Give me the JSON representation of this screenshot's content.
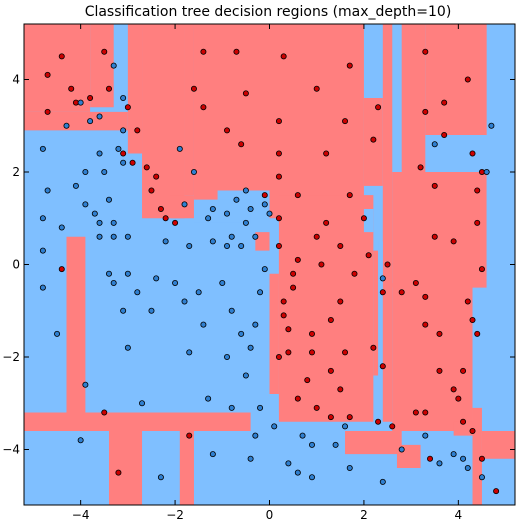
{
  "chart_data": {
    "type": "scatter",
    "title": "Classification tree decision regions (max_depth=10)",
    "xlabel": "",
    "ylabel": "",
    "xlim": [
      -5.2,
      5.2
    ],
    "ylim": [
      -5.2,
      5.2
    ],
    "x_ticks": [
      -4,
      -2,
      0,
      2,
      4
    ],
    "y_ticks": [
      -4,
      -2,
      0,
      2,
      4
    ],
    "grid": false,
    "colors": {
      "class0_region": "#ff7f7f",
      "class1_region": "#7fbfff",
      "class0_point": "#cc0000",
      "class1_point": "#2f7fd0",
      "marker_edge": "#000000"
    },
    "regions_note": "decision regions rendered as axis-aligned rectangles over a blue background",
    "series": [
      {
        "class": 0,
        "color": "#cc0000",
        "points": [
          [
            -4.7,
            4.1
          ],
          [
            -4.4,
            4.5
          ],
          [
            -4.7,
            3.3
          ],
          [
            -4.2,
            3.8
          ],
          [
            -3.5,
            4.6
          ],
          [
            -3.8,
            3.6
          ],
          [
            -3.4,
            3.8
          ],
          [
            -3.0,
            3.4
          ],
          [
            -2.8,
            2.9
          ],
          [
            -3.1,
            2.4
          ],
          [
            -2.6,
            2.1
          ],
          [
            -2.4,
            1.9
          ],
          [
            -2.5,
            1.6
          ],
          [
            -2.3,
            1.2
          ],
          [
            -2.2,
            1.0
          ],
          [
            -2.0,
            0.9
          ],
          [
            -1.6,
            3.8
          ],
          [
            -1.4,
            4.6
          ],
          [
            -1.4,
            3.4
          ],
          [
            -0.7,
            4.6
          ],
          [
            -0.9,
            2.9
          ],
          [
            -0.5,
            3.7
          ],
          [
            -0.6,
            2.6
          ],
          [
            0.2,
            3.1
          ],
          [
            0.2,
            2.4
          ],
          [
            0.2,
            1.9
          ],
          [
            0.2,
            1.0
          ],
          [
            0.2,
            0.4
          ],
          [
            0.3,
            4.5
          ],
          [
            1.0,
            3.8
          ],
          [
            1.2,
            2.4
          ],
          [
            1.2,
            0.9
          ],
          [
            1.0,
            0.6
          ],
          [
            0.5,
            -0.2
          ],
          [
            0.6,
            0.1
          ],
          [
            1.1,
            0.0
          ],
          [
            1.5,
            0.4
          ],
          [
            1.8,
            -0.2
          ],
          [
            1.6,
            3.1
          ],
          [
            1.7,
            4.3
          ],
          [
            1.7,
            1.5
          ],
          [
            2.2,
            2.7
          ],
          [
            2.0,
            1.0
          ],
          [
            2.1,
            0.2
          ],
          [
            2.4,
            -0.6
          ],
          [
            2.5,
            0.0
          ],
          [
            1.5,
            -0.8
          ],
          [
            1.3,
            -1.2
          ],
          [
            0.3,
            -0.8
          ],
          [
            0.3,
            -1.1
          ],
          [
            0.4,
            -1.4
          ],
          [
            0.4,
            -1.9
          ],
          [
            0.9,
            -1.5
          ],
          [
            0.9,
            -1.9
          ],
          [
            1.6,
            -1.9
          ],
          [
            1.3,
            -2.3
          ],
          [
            2.2,
            -1.8
          ],
          [
            2.4,
            -2.2
          ],
          [
            0.8,
            -2.5
          ],
          [
            1.5,
            -2.7
          ],
          [
            0.6,
            -2.9
          ],
          [
            1.0,
            -3.1
          ],
          [
            1.3,
            -3.3
          ],
          [
            1.7,
            -3.3
          ],
          [
            2.3,
            -3.4
          ],
          [
            2.6,
            -3.5
          ],
          [
            2.8,
            -0.6
          ],
          [
            3.1,
            -0.4
          ],
          [
            3.3,
            -0.7
          ],
          [
            3.3,
            -1.3
          ],
          [
            3.6,
            -1.5
          ],
          [
            3.6,
            -2.3
          ],
          [
            4.1,
            -2.3
          ],
          [
            3.9,
            -2.7
          ],
          [
            4.0,
            -2.9
          ],
          [
            4.3,
            -1.2
          ],
          [
            4.4,
            -1.5
          ],
          [
            4.2,
            -0.8
          ],
          [
            4.5,
            -0.1
          ],
          [
            3.5,
            0.6
          ],
          [
            3.9,
            0.5
          ],
          [
            4.4,
            0.9
          ],
          [
            4.4,
            1.6
          ],
          [
            3.5,
            1.7
          ],
          [
            3.2,
            2.1
          ],
          [
            4.5,
            2.0
          ],
          [
            4.3,
            2.4
          ],
          [
            3.7,
            2.8
          ],
          [
            3.3,
            3.3
          ],
          [
            2.3,
            3.4
          ],
          [
            4.2,
            4.0
          ],
          [
            3.3,
            4.6
          ],
          [
            3.7,
            3.5
          ],
          [
            4.1,
            -3.4
          ],
          [
            4.3,
            -3.6
          ],
          [
            4.5,
            -4.2
          ],
          [
            3.1,
            -3.2
          ],
          [
            3.3,
            -3.2
          ],
          [
            3.4,
            -4.2
          ],
          [
            4.8,
            -4.9
          ],
          [
            -1.7,
            -3.7
          ],
          [
            -3.2,
            -4.5
          ],
          [
            -3.5,
            -3.2
          ],
          [
            -4.4,
            -0.1
          ],
          [
            0.5,
            -0.5
          ],
          [
            0.2,
            -2.0
          ],
          [
            -4.1,
            3.5
          ],
          [
            -2.9,
            2.2
          ],
          [
            -0.1,
            1.5
          ],
          [
            0.6,
            1.5
          ]
        ]
      },
      {
        "class": 1,
        "color": "#2f7fd0",
        "points": [
          [
            -4.8,
            2.5
          ],
          [
            -4.7,
            1.6
          ],
          [
            -4.8,
            1.0
          ],
          [
            -4.4,
            0.8
          ],
          [
            -4.8,
            0.3
          ],
          [
            -4.8,
            -0.5
          ],
          [
            -4.5,
            -1.5
          ],
          [
            -4.1,
            1.7
          ],
          [
            -3.9,
            1.3
          ],
          [
            -3.7,
            1.1
          ],
          [
            -3.6,
            0.9
          ],
          [
            -3.4,
            1.4
          ],
          [
            -3.3,
            0.9
          ],
          [
            -3.6,
            0.6
          ],
          [
            -3.3,
            0.6
          ],
          [
            -3.4,
            -0.2
          ],
          [
            -3.3,
            -0.4
          ],
          [
            -3.0,
            0.6
          ],
          [
            -3.0,
            -0.2
          ],
          [
            -3.1,
            -1.0
          ],
          [
            -3.0,
            -1.8
          ],
          [
            -2.5,
            -1.0
          ],
          [
            -2.4,
            -0.3
          ],
          [
            -2.8,
            -0.6
          ],
          [
            -2.0,
            -0.4
          ],
          [
            -1.8,
            -0.8
          ],
          [
            -1.5,
            -0.6
          ],
          [
            -1.4,
            -1.3
          ],
          [
            -1.7,
            -1.9
          ],
          [
            -1.0,
            -0.4
          ],
          [
            -0.8,
            -1.0
          ],
          [
            -0.6,
            -1.5
          ],
          [
            -0.9,
            -2.0
          ],
          [
            -0.4,
            -1.8
          ],
          [
            -0.3,
            -1.3
          ],
          [
            -0.2,
            -0.6
          ],
          [
            -0.1,
            -0.1
          ],
          [
            -0.6,
            0.4
          ],
          [
            -0.9,
            0.4
          ],
          [
            -1.7,
            0.4
          ],
          [
            -2.2,
            0.5
          ],
          [
            -1.2,
            0.5
          ],
          [
            -1.3,
            1.0
          ],
          [
            -1.2,
            1.2
          ],
          [
            -0.9,
            1.1
          ],
          [
            -0.7,
            1.4
          ],
          [
            -0.4,
            1.2
          ],
          [
            -0.1,
            1.3
          ],
          [
            -0.5,
            0.9
          ],
          [
            0.0,
            1.1
          ],
          [
            -0.3,
            0.6
          ],
          [
            -0.8,
            0.6
          ],
          [
            -1.6,
            2.0
          ],
          [
            -1.9,
            2.5
          ],
          [
            -3.5,
            2.0
          ],
          [
            -3.9,
            2.0
          ],
          [
            -3.6,
            3.2
          ],
          [
            -3.6,
            2.4
          ],
          [
            -3.2,
            2.5
          ],
          [
            -3.3,
            4.3
          ],
          [
            -3.1,
            3.6
          ],
          [
            -4.0,
            3.5
          ],
          [
            -4.3,
            3.0
          ],
          [
            -3.8,
            3.1
          ],
          [
            -3.1,
            2.9
          ],
          [
            -3.1,
            2.2
          ],
          [
            -1.8,
            1.3
          ],
          [
            -0.5,
            -2.4
          ],
          [
            -0.2,
            -3.1
          ],
          [
            -0.3,
            -3.7
          ],
          [
            -0.4,
            -4.2
          ],
          [
            0.1,
            -3.5
          ],
          [
            0.4,
            -4.3
          ],
          [
            0.7,
            -3.7
          ],
          [
            0.9,
            -3.9
          ],
          [
            1.4,
            -3.9
          ],
          [
            1.6,
            -3.5
          ],
          [
            0.6,
            -4.5
          ],
          [
            0.9,
            -4.6
          ],
          [
            1.7,
            -4.4
          ],
          [
            2.4,
            -4.7
          ],
          [
            2.8,
            -4.0
          ],
          [
            3.3,
            -3.7
          ],
          [
            3.9,
            -4.1
          ],
          [
            3.6,
            -4.3
          ],
          [
            4.2,
            -4.4
          ],
          [
            4.5,
            -4.6
          ],
          [
            4.1,
            -4.2
          ],
          [
            -1.3,
            -2.9
          ],
          [
            -2.7,
            -3.0
          ],
          [
            -3.9,
            -2.6
          ],
          [
            -4.0,
            -3.8
          ],
          [
            -1.2,
            -4.1
          ],
          [
            -2.3,
            -4.6
          ],
          [
            -0.8,
            -3.1
          ],
          [
            4.7,
            3.0
          ],
          [
            4.6,
            2.0
          ],
          [
            3.5,
            2.6
          ],
          [
            2.4,
            -0.3
          ],
          [
            -0.5,
            1.6
          ]
        ]
      }
    ]
  }
}
